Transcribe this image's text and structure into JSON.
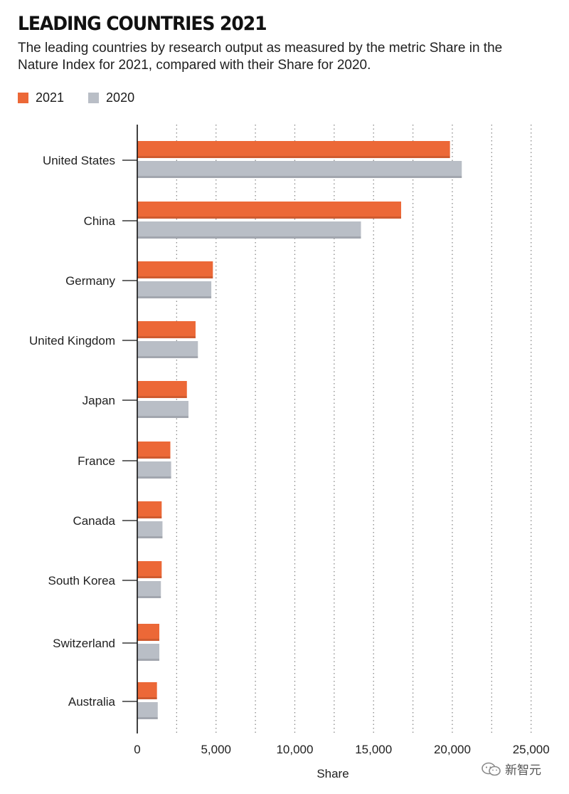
{
  "title": "LEADING COUNTRIES 2021",
  "subtitle": "The leading countries by research output as measured by the metric Share in the Nature Index for 2021, compared with their Share for 2020.",
  "watermark": "新智元",
  "colors": {
    "2021": "#ec6837",
    "2020": "#b9bec6",
    "grid": "#8a8a8a",
    "axis": "#111111"
  },
  "chart_data": {
    "type": "bar",
    "orientation": "horizontal",
    "title": "LEADING COUNTRIES 2021",
    "xlabel": "Share",
    "ylabel": "",
    "xlim": [
      0,
      25000
    ],
    "ticks": [
      0,
      5000,
      10000,
      15000,
      20000,
      25000
    ],
    "tick_labels": [
      "0",
      "5,000",
      "10,000",
      "15,000",
      "20,000",
      "25,000"
    ],
    "grid": "vertical dotted",
    "legend_position": "top-left",
    "categories": [
      "United States",
      "China",
      "Germany",
      "United Kingdom",
      "Japan",
      "France",
      "Canada",
      "South Korea",
      "Switzerland",
      "Australia"
    ],
    "series": [
      {
        "name": "2021",
        "values": [
          19850,
          16750,
          4800,
          3700,
          3150,
          2100,
          1550,
          1550,
          1400,
          1250
        ]
      },
      {
        "name": "2020",
        "values": [
          20600,
          14200,
          4700,
          3850,
          3250,
          2150,
          1600,
          1500,
          1400,
          1300
        ]
      }
    ]
  }
}
